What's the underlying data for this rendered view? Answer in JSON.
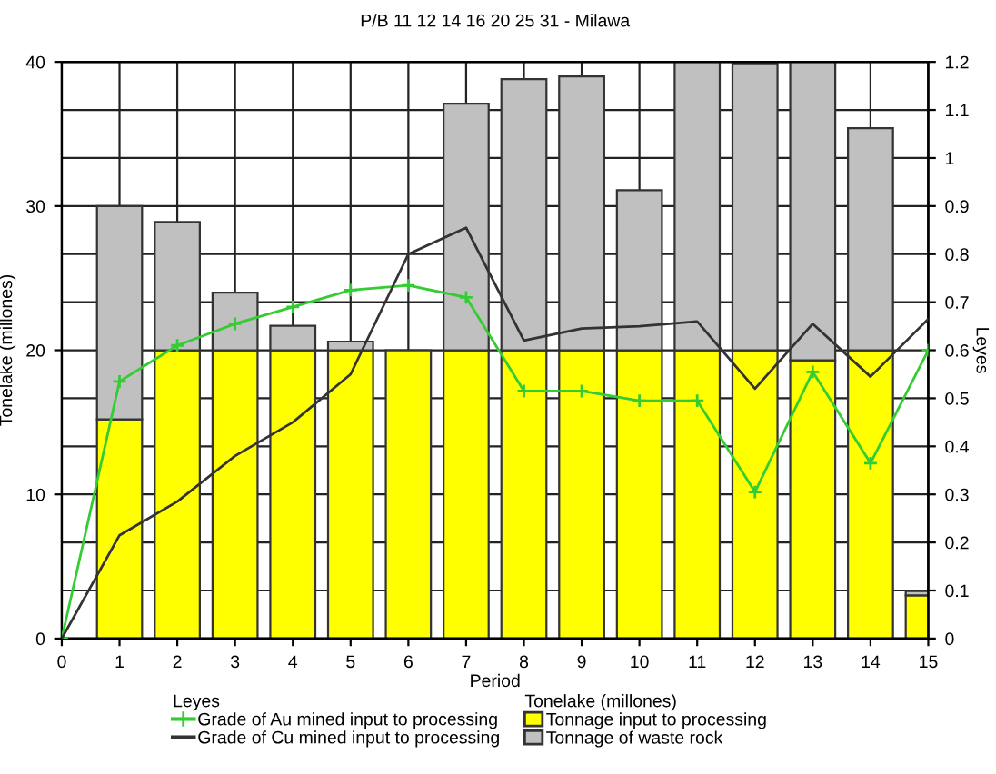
{
  "chart_data": {
    "type": "bar",
    "stacked": true,
    "title": "P/B 11 12 14 16 20 25 31 - Milawa",
    "xlabel": "Period",
    "ylabel": "Tonelake (millones)",
    "y2label": "Leyes",
    "x": [
      1,
      2,
      3,
      4,
      5,
      6,
      7,
      8,
      9,
      10,
      11,
      12,
      13,
      14,
      15
    ],
    "series": [
      {
        "name": "Tonnage input to processing",
        "color": "#ffff00",
        "values": [
          15.2,
          20,
          20,
          20,
          20,
          20,
          20,
          20,
          20,
          20,
          20,
          20,
          19.3,
          20,
          3.0
        ]
      },
      {
        "name": "Tonnage of waste rock",
        "color": "#c0c0c0",
        "values": [
          14.8,
          8.9,
          4,
          1.7,
          0.6,
          null,
          17.1,
          18.8,
          19,
          11.1,
          20,
          19.9,
          20.7,
          15.4,
          0.3
        ]
      },
      {
        "name": "Grade of Au mined input to processing",
        "type": "line",
        "axis": "y2",
        "color": "#33cc33",
        "marker": "cross",
        "x": [
          0,
          1,
          2,
          3,
          4,
          5,
          6,
          7,
          8,
          9,
          10,
          11,
          12,
          13,
          14,
          15
        ],
        "values": [
          0,
          0.535,
          0.61,
          0.655,
          0.69,
          0.725,
          0.735,
          0.71,
          0.515,
          0.515,
          0.495,
          0.495,
          0.305,
          0.555,
          0.365,
          0.6
        ]
      },
      {
        "name": "Grade of Cu mined input to processing",
        "type": "line",
        "axis": "y2",
        "color": "#333333",
        "marker": "none",
        "x": [
          0,
          1,
          2,
          3,
          4,
          5,
          6,
          7,
          8,
          9,
          10,
          11,
          12,
          13,
          14,
          15
        ],
        "values": [
          0,
          0.215,
          0.285,
          0.38,
          0.45,
          0.55,
          0.8,
          0.855,
          0.62,
          0.645,
          0.65,
          0.66,
          0.52,
          0.655,
          0.545,
          0.665
        ]
      }
    ],
    "xlim": [
      0,
      15
    ],
    "xticks": [
      0,
      1,
      2,
      3,
      4,
      5,
      6,
      7,
      8,
      9,
      10,
      11,
      12,
      13,
      14,
      15
    ],
    "ylim": [
      0,
      40
    ],
    "yticks": [
      0,
      10,
      20,
      30,
      40
    ],
    "y2lim": [
      0,
      1.2
    ],
    "y2ticks": [
      0,
      0.1,
      0.2,
      0.3,
      0.4,
      0.5,
      0.6,
      0.7,
      0.8,
      0.9,
      1,
      1.1,
      1.2
    ],
    "grid": true,
    "legend": "bottom"
  }
}
